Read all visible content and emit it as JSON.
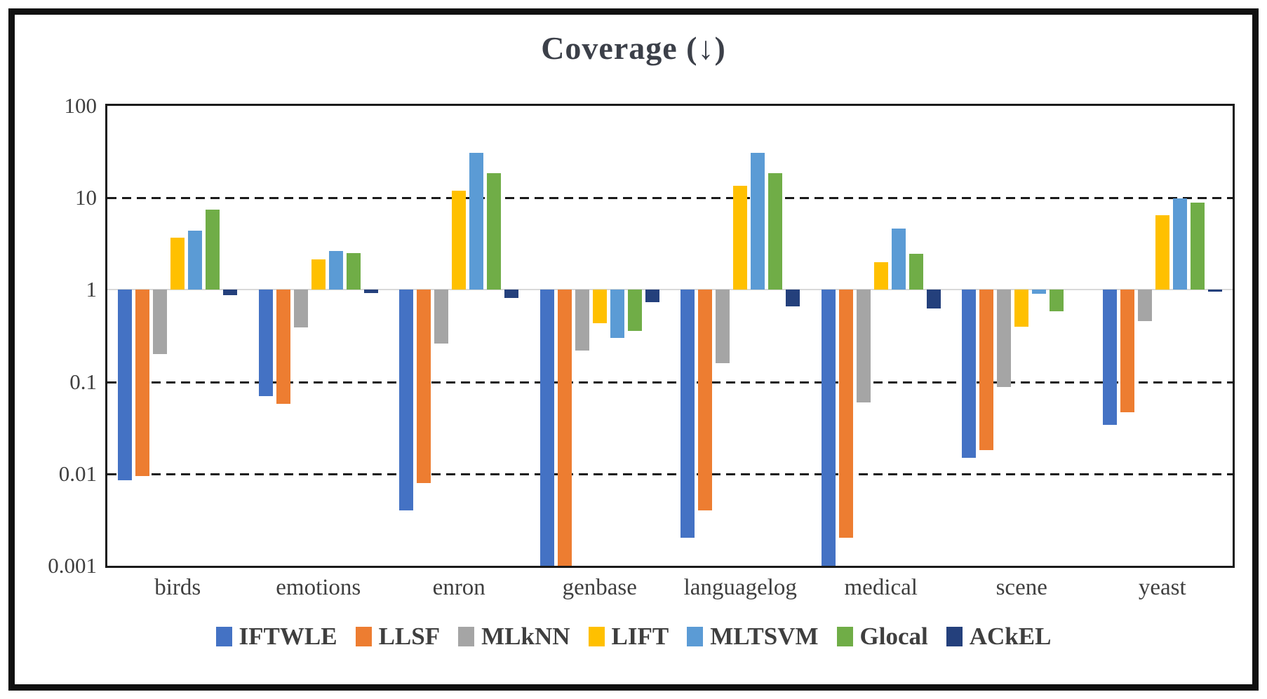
{
  "title": "Coverage (↓)",
  "chart_data": {
    "type": "bar",
    "title": "Coverage (↓)",
    "yscale": "log",
    "ylim": [
      0.001,
      100
    ],
    "baseline": 1,
    "ytick_labels": [
      "100",
      "10",
      "1",
      "0.1",
      "0.01",
      "0.001"
    ],
    "ytick_values": [
      100,
      10,
      1,
      0.1,
      0.01,
      0.001
    ],
    "dashed_gridlines_at": [
      10,
      0.1,
      0.01
    ],
    "legend_position": "bottom",
    "categories": [
      "birds",
      "emotions",
      "enron",
      "genbase",
      "languagelog",
      "medical",
      "scene",
      "yeast"
    ],
    "series": [
      {
        "name": "IFTWLE",
        "color": "#4472C4",
        "values": [
          0.0085,
          0.07,
          0.004,
          0.001,
          0.002,
          0.001,
          0.015,
          0.034
        ]
      },
      {
        "name": "LLSF",
        "color": "#ED7D31",
        "values": [
          0.0095,
          0.058,
          0.008,
          0.001,
          0.004,
          0.002,
          0.018,
          0.047
        ]
      },
      {
        "name": "MLkNN",
        "color": "#A5A5A5",
        "values": [
          0.2,
          0.39,
          0.26,
          0.22,
          0.16,
          0.06,
          0.088,
          0.46
        ]
      },
      {
        "name": "LIFT",
        "color": "#FFC000",
        "values": [
          3.7,
          2.15,
          12.0,
          0.43,
          13.5,
          2.0,
          0.4,
          6.5
        ]
      },
      {
        "name": "MLTSVM",
        "color": "#5B9BD5",
        "values": [
          4.4,
          2.65,
          31.0,
          0.3,
          31.0,
          4.6,
          0.9,
          9.8
        ]
      },
      {
        "name": "Glocal",
        "color": "#70AD47",
        "values": [
          7.5,
          2.5,
          18.5,
          0.36,
          18.5,
          2.45,
          0.58,
          8.8
        ]
      },
      {
        "name": "ACkEL",
        "color": "#24407C",
        "values": [
          0.88,
          0.93,
          0.82,
          0.73,
          0.66,
          0.63,
          1.0,
          0.95
        ]
      }
    ]
  },
  "legend": {
    "items": [
      "IFTWLE",
      "LLSF",
      "MLkNN",
      "LIFT",
      "MLTSVM",
      "Glocal",
      "ACkEL"
    ]
  }
}
